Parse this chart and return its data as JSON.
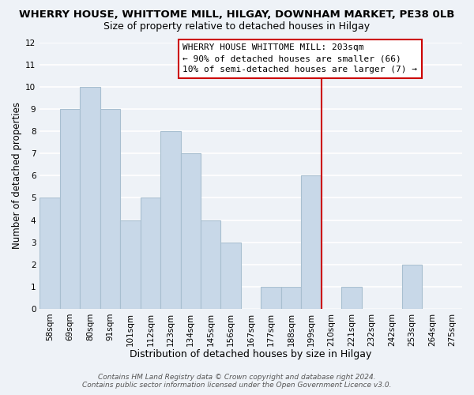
{
  "title": "WHERRY HOUSE, WHITTOME MILL, HILGAY, DOWNHAM MARKET, PE38 0LB",
  "subtitle": "Size of property relative to detached houses in Hilgay",
  "xlabel": "Distribution of detached houses by size in Hilgay",
  "ylabel": "Number of detached properties",
  "bar_labels": [
    "58sqm",
    "69sqm",
    "80sqm",
    "91sqm",
    "101sqm",
    "112sqm",
    "123sqm",
    "134sqm",
    "145sqm",
    "156sqm",
    "167sqm",
    "177sqm",
    "188sqm",
    "199sqm",
    "210sqm",
    "221sqm",
    "232sqm",
    "242sqm",
    "253sqm",
    "264sqm",
    "275sqm"
  ],
  "bar_values": [
    5,
    9,
    10,
    9,
    4,
    5,
    8,
    7,
    4,
    3,
    0,
    1,
    1,
    6,
    0,
    1,
    0,
    0,
    2,
    0,
    0
  ],
  "bar_color": "#c8d8e8",
  "bar_edgecolor": "#a8bfd0",
  "vline_x_index": 13.5,
  "vline_color": "#cc0000",
  "ylim": [
    0,
    12
  ],
  "yticks": [
    0,
    1,
    2,
    3,
    4,
    5,
    6,
    7,
    8,
    9,
    10,
    11,
    12
  ],
  "annotation_line1": "WHERRY HOUSE WHITTOME MILL: 203sqm",
  "annotation_line2": "← 90% of detached houses are smaller (66)",
  "annotation_line3": "10% of semi-detached houses are larger (7) →",
  "footer_line1": "Contains HM Land Registry data © Crown copyright and database right 2024.",
  "footer_line2": "Contains public sector information licensed under the Open Government Licence v3.0.",
  "bg_color": "#eef2f7",
  "grid_color": "#ffffff",
  "title_fontsize": 9.5,
  "subtitle_fontsize": 9,
  "xlabel_fontsize": 9,
  "ylabel_fontsize": 8.5,
  "tick_fontsize": 7.5,
  "annotation_fontsize": 8,
  "footer_fontsize": 6.5
}
